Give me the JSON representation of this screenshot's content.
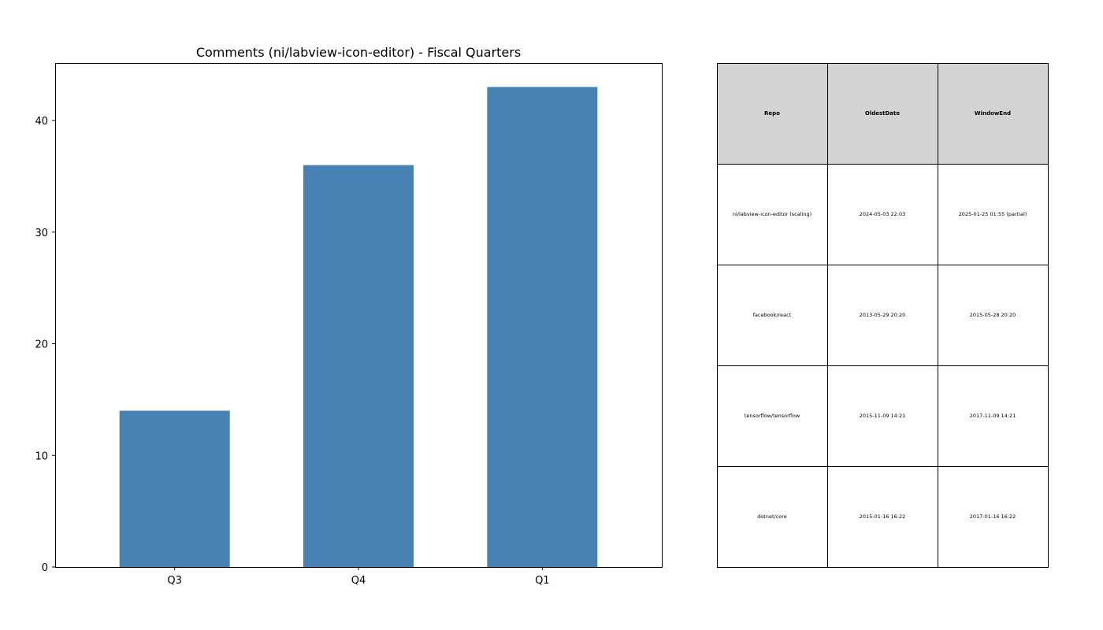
{
  "chart_data": {
    "type": "bar",
    "title": "Comments (ni/labview-icon-editor) - Fiscal Quarters",
    "categories": [
      "Q3",
      "Q4",
      "Q1"
    ],
    "values": [
      14,
      36,
      43
    ],
    "ylim": [
      0,
      45.15
    ],
    "yticks": [
      0,
      10,
      20,
      30,
      40
    ],
    "bar_color": "#4682b4",
    "grid": false,
    "xlabel": "",
    "ylabel": ""
  },
  "table": {
    "header_bg": "#d3d3d3",
    "columns": [
      "Repo",
      "OldestDate",
      "WindowEnd"
    ],
    "rows": [
      [
        "ni/labview-icon-editor (scaling)",
        "2024-05-03 22:03",
        "2025-01-25 01:55 (partial)"
      ],
      [
        "facebook/react",
        "2013-05-29 20:20",
        "2015-05-28 20:20"
      ],
      [
        "tensorflow/tensorflow",
        "2015-11-09 14:21",
        "2017-11-09 14:21"
      ],
      [
        "dotnet/core",
        "2015-01-16 16:22",
        "2017-01-16 16:22"
      ]
    ]
  }
}
